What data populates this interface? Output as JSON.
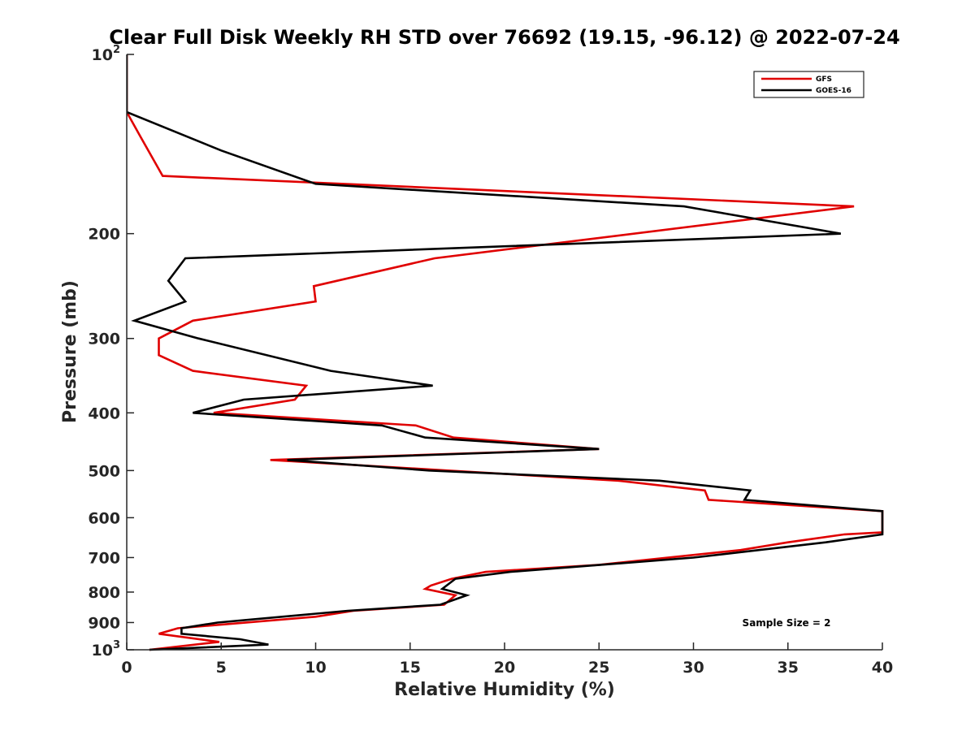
{
  "chart_data": {
    "type": "line",
    "title": "Clear Full Disk Weekly RH STD over 76692 (19.15, -96.12) @ 2022-07-24",
    "xlabel": "Relative Humidity (%)",
    "ylabel": "Pressure (mb)",
    "xlim": [
      0,
      40
    ],
    "ylim": [
      100,
      1000
    ],
    "yscale": "log",
    "y_reversed": true,
    "grid": false,
    "legend_location": "top-right",
    "x_ticks": [
      0,
      5,
      10,
      15,
      20,
      25,
      30,
      35,
      40
    ],
    "x_tick_labels": [
      "0",
      "5",
      "10",
      "15",
      "20",
      "25",
      "30",
      "35",
      "40"
    ],
    "y_ticks": [
      100,
      200,
      300,
      400,
      500,
      600,
      700,
      800,
      900,
      1000
    ],
    "y_tick_labels": [
      {
        "base": "10",
        "sup": "2"
      },
      {
        "base": "200",
        "sup": ""
      },
      {
        "base": "300",
        "sup": ""
      },
      {
        "base": "400",
        "sup": ""
      },
      {
        "base": "500",
        "sup": ""
      },
      {
        "base": "600",
        "sup": ""
      },
      {
        "base": "700",
        "sup": ""
      },
      {
        "base": "800",
        "sup": ""
      },
      {
        "base": "900",
        "sup": ""
      },
      {
        "base": "10",
        "sup": "3"
      }
    ],
    "annotation": "Sample Size = 2",
    "series": [
      {
        "name": "GFS",
        "color": "#e00000",
        "points": [
          [
            0.0,
            100
          ],
          [
            0.0,
            125
          ],
          [
            0.7,
            137
          ],
          [
            1.9,
            160
          ],
          [
            38.5,
            180
          ],
          [
            16.3,
            220
          ],
          [
            9.9,
            245
          ],
          [
            10.0,
            260
          ],
          [
            3.5,
            280
          ],
          [
            1.7,
            300
          ],
          [
            1.7,
            320
          ],
          [
            3.5,
            340
          ],
          [
            9.5,
            360
          ],
          [
            8.9,
            380
          ],
          [
            4.6,
            400
          ],
          [
            15.3,
            420
          ],
          [
            17.3,
            440
          ],
          [
            25.0,
            460
          ],
          [
            7.6,
            480
          ],
          [
            17.0,
            500
          ],
          [
            26.0,
            520
          ],
          [
            30.6,
            540
          ],
          [
            30.8,
            560
          ],
          [
            40.0,
            585
          ],
          [
            40.0,
            635
          ],
          [
            38.0,
            640
          ],
          [
            35.0,
            660
          ],
          [
            32.5,
            680
          ],
          [
            25.0,
            720
          ],
          [
            19.0,
            740
          ],
          [
            17.2,
            760
          ],
          [
            16.1,
            780
          ],
          [
            15.8,
            790
          ],
          [
            17.4,
            810
          ],
          [
            16.8,
            840
          ],
          [
            12.0,
            860
          ],
          [
            10.0,
            880
          ],
          [
            2.7,
            920
          ],
          [
            1.7,
            940
          ],
          [
            4.9,
            970
          ],
          [
            1.2,
            1000
          ]
        ]
      },
      {
        "name": "GOES-16",
        "color": "#000000",
        "points": [
          [
            0.0,
            100
          ],
          [
            0.0,
            125
          ],
          [
            5.0,
            145
          ],
          [
            10.0,
            165
          ],
          [
            29.5,
            180
          ],
          [
            37.8,
            200
          ],
          [
            3.1,
            220
          ],
          [
            2.2,
            240
          ],
          [
            3.1,
            260
          ],
          [
            0.4,
            280
          ],
          [
            3.8,
            300
          ],
          [
            10.8,
            340
          ],
          [
            16.2,
            360
          ],
          [
            6.2,
            380
          ],
          [
            3.5,
            400
          ],
          [
            13.5,
            420
          ],
          [
            15.8,
            440
          ],
          [
            25.0,
            460
          ],
          [
            8.5,
            480
          ],
          [
            16.0,
            500
          ],
          [
            28.2,
            520
          ],
          [
            33.0,
            540
          ],
          [
            32.7,
            560
          ],
          [
            40.0,
            585
          ],
          [
            40.0,
            640
          ],
          [
            37.0,
            660
          ],
          [
            30.0,
            700
          ],
          [
            20.3,
            740
          ],
          [
            17.4,
            760
          ],
          [
            16.7,
            790
          ],
          [
            18.0,
            810
          ],
          [
            16.6,
            840
          ],
          [
            11.7,
            860
          ],
          [
            4.8,
            900
          ],
          [
            2.9,
            920
          ],
          [
            2.9,
            940
          ],
          [
            6.0,
            960
          ],
          [
            7.5,
            980
          ],
          [
            1.2,
            1000
          ]
        ]
      }
    ]
  }
}
